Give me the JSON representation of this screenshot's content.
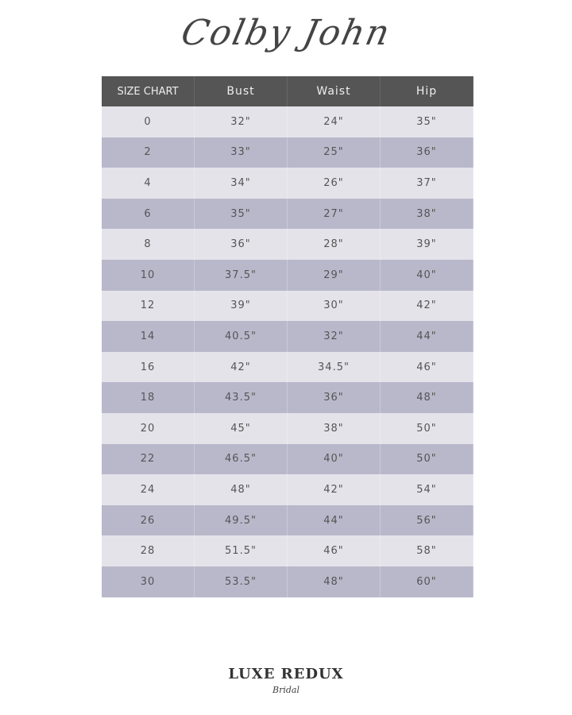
{
  "title": "Colby John",
  "table": {
    "headers": [
      "SIZE CHART",
      "Bust",
      "Waist",
      "Hip"
    ],
    "rows": [
      [
        "0",
        "32\"",
        "24\"",
        "35\""
      ],
      [
        "2",
        "33\"",
        "25\"",
        "36\""
      ],
      [
        "4",
        "34\"",
        "26\"",
        "37\""
      ],
      [
        "6",
        "35\"",
        "27\"",
        "38\""
      ],
      [
        "8",
        "36\"",
        "28\"",
        "39\""
      ],
      [
        "10",
        "37.5\"",
        "29\"",
        "40\""
      ],
      [
        "12",
        "39\"",
        "30\"",
        "42\""
      ],
      [
        "14",
        "40.5\"",
        "32\"",
        "44\""
      ],
      [
        "16",
        "42\"",
        "34.5\"",
        "46\""
      ],
      [
        "18",
        "43.5\"",
        "36\"",
        "48\""
      ],
      [
        "20",
        "45\"",
        "38\"",
        "50\""
      ],
      [
        "22",
        "46.5\"",
        "40\"",
        "50\""
      ],
      [
        "24",
        "48\"",
        "42\"",
        "54\""
      ],
      [
        "26",
        "49.5\"",
        "44\"",
        "56\""
      ],
      [
        "28",
        "51.5\"",
        "46\"",
        "58\""
      ],
      [
        "30",
        "53.5\"",
        "48\"",
        "60\""
      ]
    ]
  },
  "logo": {
    "main": "LUXE REDUX",
    "sub": "Bridal"
  },
  "colors": {
    "header": "#555555",
    "row_light": "#e4e3ea",
    "row_dark": "#b9b8cb"
  }
}
